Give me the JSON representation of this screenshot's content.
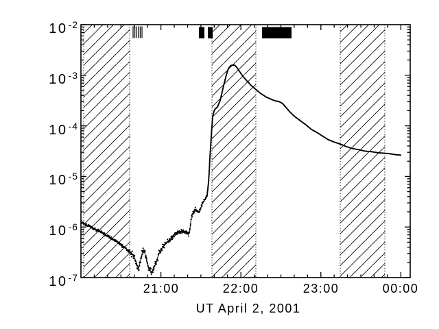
{
  "figure": {
    "xlabel": "UT April 2, 2001",
    "background_color": "#ffffff",
    "ink_color": "#000000"
  },
  "x_axis": {
    "labels": [
      {
        "text": "21:00",
        "hour": 21
      },
      {
        "text": "22:00",
        "hour": 22
      },
      {
        "text": "23:00",
        "hour": 23
      },
      {
        "text": "00:00",
        "hour": 24
      }
    ]
  },
  "y_axis": {
    "labels": [
      {
        "base": "10",
        "exp": "-2",
        "value_exp": -2
      },
      {
        "base": "10",
        "exp": "-3",
        "value_exp": -3
      },
      {
        "base": "10",
        "exp": "-4",
        "value_exp": -4
      },
      {
        "base": "10",
        "exp": "-5",
        "value_exp": -5
      },
      {
        "base": "10",
        "exp": "-6",
        "value_exp": -6
      },
      {
        "base": "10",
        "exp": "-7",
        "value_exp": -7
      }
    ]
  },
  "chart_data": {
    "type": "line",
    "title": "",
    "xlabel": "UT April 2, 2001",
    "ylabel": "",
    "grid": false,
    "legend": null,
    "xlim_hours_ut": [
      20.0,
      24.117
    ],
    "ylim_log10": [
      -7,
      -2
    ],
    "x_major_ticks_hours": [
      21,
      22,
      23,
      24
    ],
    "x_tick_labels": [
      "21:00",
      "22:00",
      "23:00",
      "00:00"
    ],
    "x_minor_tick_step_minutes": 10,
    "y_major_ticks_log10": [
      -2,
      -3,
      -4,
      -5,
      -6,
      -7
    ],
    "peak": {
      "hour_ut": 21.9,
      "flux_log10": -2.8
    },
    "hatched_intervals_hours": [
      [
        20.034,
        20.61
      ],
      [
        21.638,
        22.187
      ],
      [
        23.242,
        23.8
      ]
    ],
    "top_black_bars_hours": [
      [
        21.475,
        21.544
      ],
      [
        21.587,
        21.647
      ],
      [
        22.264,
        22.633
      ]
    ],
    "top_tick_marks_hours": [
      20.652,
      20.674,
      20.696,
      20.719,
      20.741,
      20.763
    ],
    "series": [
      {
        "name": "x-ray-flux",
        "style": "noisy-dots-then-line",
        "noisy_until_hour": 21.578,
        "points_hour_log10flux": [
          [
            20.0,
            -5.9
          ],
          [
            20.06,
            -5.95
          ],
          [
            20.12,
            -6.0
          ],
          [
            20.189,
            -6.05
          ],
          [
            20.257,
            -6.1
          ],
          [
            20.326,
            -6.17
          ],
          [
            20.395,
            -6.24
          ],
          [
            20.463,
            -6.31
          ],
          [
            20.532,
            -6.39
          ],
          [
            20.6,
            -6.48
          ],
          [
            20.66,
            -6.57
          ],
          [
            20.695,
            -6.72
          ],
          [
            20.72,
            -6.81
          ],
          [
            20.746,
            -6.66
          ],
          [
            20.772,
            -6.47
          ],
          [
            20.789,
            -6.44
          ],
          [
            20.806,
            -6.57
          ],
          [
            20.832,
            -6.73
          ],
          [
            20.858,
            -6.85
          ],
          [
            20.883,
            -6.89
          ],
          [
            20.909,
            -6.82
          ],
          [
            20.935,
            -6.73
          ],
          [
            20.969,
            -6.55
          ],
          [
            21.012,
            -6.43
          ],
          [
            21.063,
            -6.32
          ],
          [
            21.123,
            -6.23
          ],
          [
            21.183,
            -6.14
          ],
          [
            21.235,
            -6.09
          ],
          [
            21.278,
            -6.08
          ],
          [
            21.321,
            -6.12
          ],
          [
            21.347,
            -6.14
          ],
          [
            21.364,
            -6.04
          ],
          [
            21.381,
            -5.8
          ],
          [
            21.407,
            -5.7
          ],
          [
            21.432,
            -5.66
          ],
          [
            21.458,
            -5.7
          ],
          [
            21.484,
            -5.7
          ],
          [
            21.51,
            -5.57
          ],
          [
            21.544,
            -5.47
          ],
          [
            21.578,
            -5.37
          ],
          [
            21.595,
            -5.12
          ],
          [
            21.604,
            -4.91
          ],
          [
            21.612,
            -4.66
          ],
          [
            21.621,
            -4.43
          ],
          [
            21.63,
            -4.2
          ],
          [
            21.638,
            -4.01
          ],
          [
            21.647,
            -3.82
          ],
          [
            21.664,
            -3.71
          ],
          [
            21.681,
            -3.66
          ],
          [
            21.707,
            -3.63
          ],
          [
            21.724,
            -3.56
          ],
          [
            21.741,
            -3.5
          ],
          [
            21.767,
            -3.32
          ],
          [
            21.793,
            -3.15
          ],
          [
            21.818,
            -2.99
          ],
          [
            21.844,
            -2.87
          ],
          [
            21.87,
            -2.81
          ],
          [
            21.895,
            -2.8
          ],
          [
            21.921,
            -2.8
          ],
          [
            21.947,
            -2.84
          ],
          [
            21.981,
            -2.92
          ],
          [
            22.024,
            -3.02
          ],
          [
            22.075,
            -3.11
          ],
          [
            22.127,
            -3.2
          ],
          [
            22.187,
            -3.28
          ],
          [
            22.247,
            -3.36
          ],
          [
            22.316,
            -3.43
          ],
          [
            22.385,
            -3.48
          ],
          [
            22.436,
            -3.51
          ],
          [
            22.479,
            -3.52
          ],
          [
            22.522,
            -3.56
          ],
          [
            22.565,
            -3.64
          ],
          [
            22.616,
            -3.73
          ],
          [
            22.676,
            -3.82
          ],
          [
            22.745,
            -3.9
          ],
          [
            22.813,
            -3.98
          ],
          [
            22.882,
            -4.07
          ],
          [
            22.95,
            -4.13
          ],
          [
            23.019,
            -4.2
          ],
          [
            23.088,
            -4.27
          ],
          [
            23.165,
            -4.32
          ],
          [
            23.242,
            -4.36
          ],
          [
            23.319,
            -4.41
          ],
          [
            23.396,
            -4.45
          ],
          [
            23.473,
            -4.47
          ],
          [
            23.551,
            -4.5
          ],
          [
            23.628,
            -4.51
          ],
          [
            23.705,
            -4.53
          ],
          [
            23.782,
            -4.54
          ],
          [
            23.859,
            -4.55
          ],
          [
            23.936,
            -4.57
          ],
          [
            24.005,
            -4.58
          ]
        ]
      }
    ]
  }
}
